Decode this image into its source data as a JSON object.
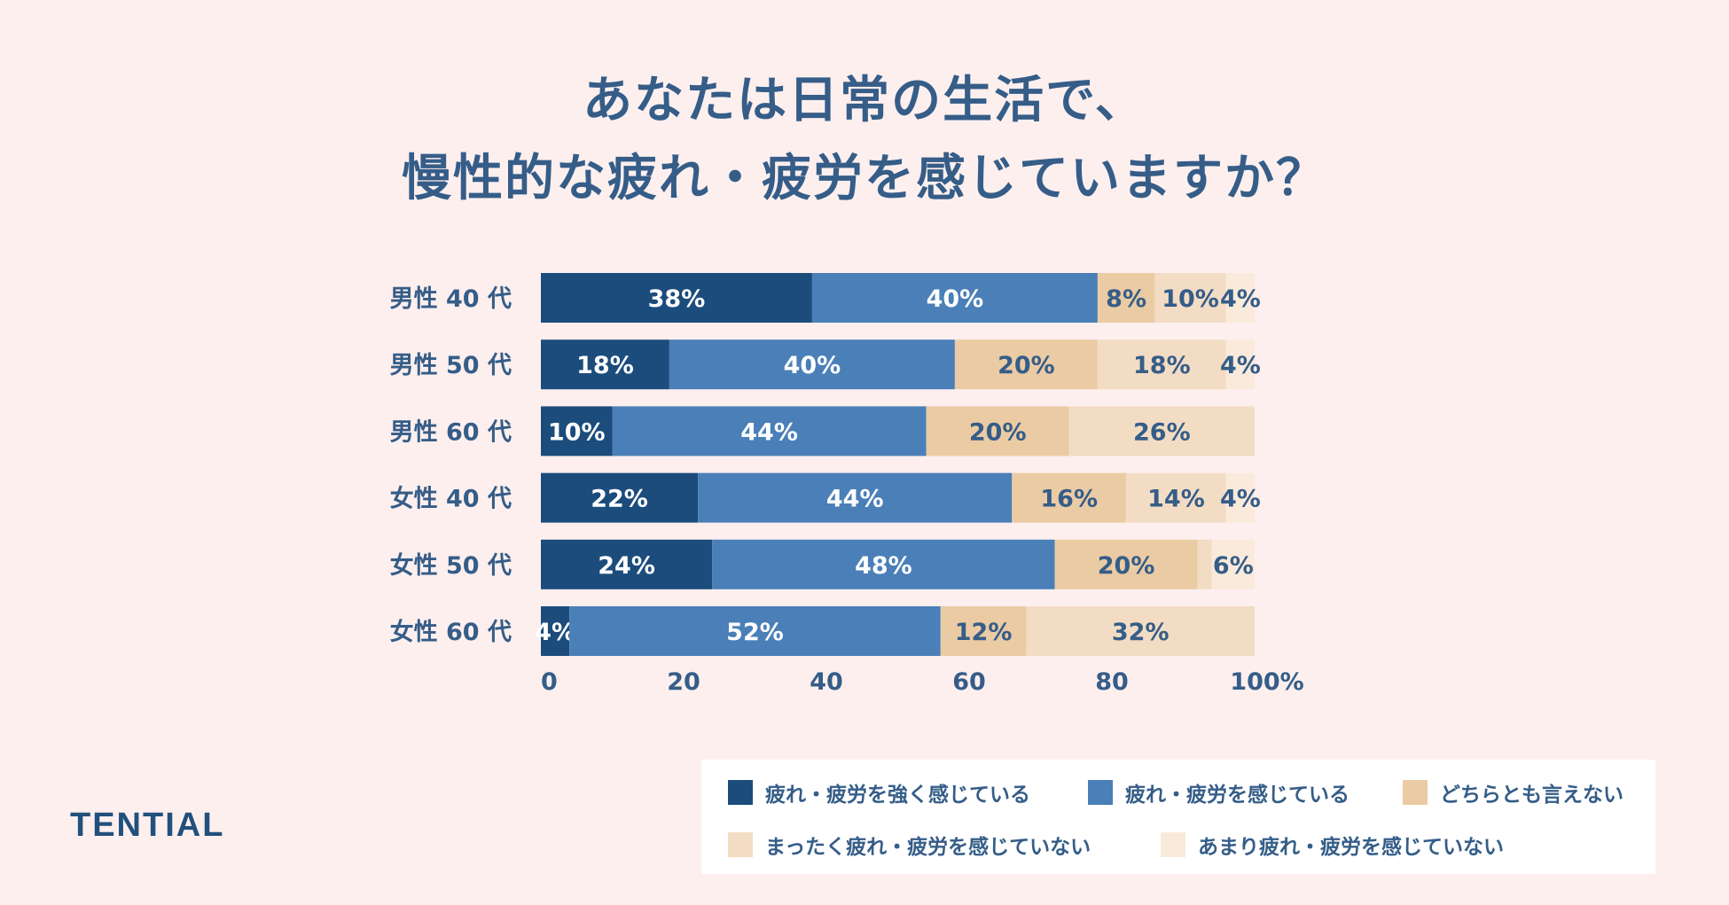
{
  "title_lines": [
    "あなたは日常の生活で、",
    "慢性的な疲れ・疲労を感じていますか？"
  ],
  "brand": "TENTIAL",
  "colors": {
    "background": "#fdefee",
    "text": "#355d88",
    "legend_bg": "#ffffff"
  },
  "chart_data": {
    "type": "bar",
    "orientation": "horizontal",
    "stacked": true,
    "title": "あなたは日常の生活で、慢性的な疲れ・疲労を感じていますか？",
    "categories": [
      "男性 40 代",
      "男性 50 代",
      "男性 60 代",
      "女性 40 代",
      "女性 50 代",
      "女性 60 代"
    ],
    "series": [
      {
        "name": "疲れ・疲労を強く感じている",
        "color": "#1c4c7c",
        "label_color": "#ffffff",
        "values": [
          38,
          18,
          10,
          22,
          24,
          4
        ],
        "labels": [
          "38%",
          "18%",
          "10%",
          "22%",
          "24%",
          "4%"
        ]
      },
      {
        "name": "疲れ・疲労を感じている",
        "color": "#4a7fb8",
        "label_color": "#ffffff",
        "values": [
          40,
          40,
          44,
          44,
          48,
          52
        ],
        "labels": [
          "40%",
          "40%",
          "44%",
          "44%",
          "48%",
          "52%"
        ]
      },
      {
        "name": "どちらとも言えない",
        "color": "#ebcba4",
        "label_color": "#355d88",
        "values": [
          8,
          20,
          20,
          16,
          20,
          12
        ],
        "labels": [
          "8%",
          "20%",
          "20%",
          "16%",
          "20%",
          "12%"
        ]
      },
      {
        "name": "まったく疲れ・疲労を感じていない",
        "color": "#f3dcc4",
        "label_color": "#355d88",
        "values": [
          10,
          18,
          26,
          14,
          2,
          32
        ],
        "labels": [
          "10%",
          "18%",
          "26%",
          "14%",
          "",
          "32%"
        ]
      },
      {
        "name": "あまり疲れ・疲労を感じていない",
        "color": "#faeadb",
        "label_color": "#355d88",
        "values": [
          4,
          4,
          0,
          4,
          6,
          0
        ],
        "labels": [
          "4%",
          "4%",
          "",
          "4%",
          "6%",
          ""
        ]
      }
    ],
    "x_ticks": [
      "0",
      "20",
      "40",
      "60",
      "80",
      "100%"
    ],
    "xlim": [
      0,
      100
    ],
    "legend": "bottom-right"
  }
}
